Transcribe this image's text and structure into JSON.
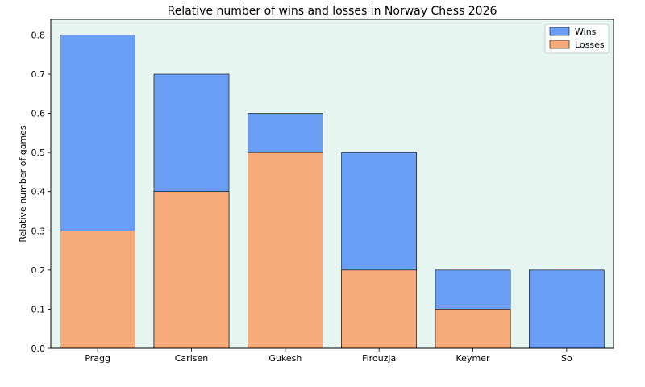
{
  "chart_data": {
    "type": "bar",
    "stacked": false,
    "overlapping_bars": true,
    "title": "Relative number of wins and losses in Norway Chess 2026",
    "xlabel": "",
    "ylabel": "Relative number of games",
    "categories": [
      "Pragg",
      "Carlsen",
      "Gukesh",
      "Firouzja",
      "Keymer",
      "So"
    ],
    "series": [
      {
        "name": "Wins",
        "values": [
          0.8,
          0.7,
          0.6,
          0.5,
          0.2,
          0.2
        ],
        "color": "#6a9ef5"
      },
      {
        "name": "Losses",
        "values": [
          0.3,
          0.4,
          0.5,
          0.2,
          0.1,
          0.0
        ],
        "color": "#f7ab7a"
      }
    ],
    "ylim": [
      0,
      0.84
    ],
    "yticks": [
      "0.0",
      "0.1",
      "0.2",
      "0.3",
      "0.4",
      "0.5",
      "0.6",
      "0.7",
      "0.8"
    ],
    "ytick_values": [
      0,
      0.1,
      0.2,
      0.3,
      0.4,
      0.5,
      0.6,
      0.7,
      0.8
    ],
    "grid": false,
    "legend_position": "top-right",
    "plot_background": "#e6f5f0"
  }
}
